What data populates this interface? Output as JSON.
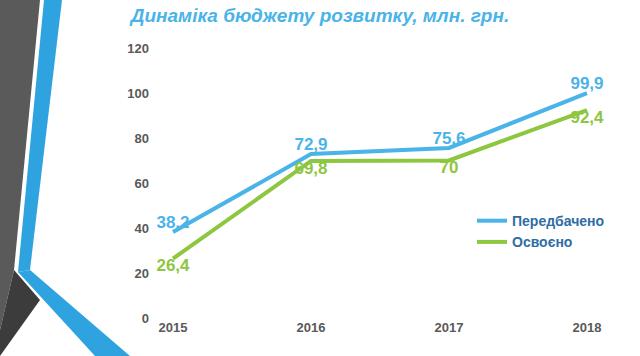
{
  "chart_data": {
    "type": "line",
    "title": "Динаміка бюджету розвитку, млн. грн.",
    "categories": [
      "2015",
      "2016",
      "2017",
      "2018"
    ],
    "series": [
      {
        "name": "Передбачено",
        "color": "#4ab3e8",
        "values": [
          38.2,
          72.9,
          75.6,
          99.9
        ],
        "value_labels": [
          "38,2",
          "72,9",
          "75,6",
          "99,9"
        ]
      },
      {
        "name": "Освоєно",
        "color": "#8dc63f",
        "values": [
          26.4,
          69.8,
          70,
          92.4
        ],
        "value_labels": [
          "26,4",
          "69,8",
          "70",
          "92,4"
        ]
      }
    ],
    "ylim": [
      0,
      120
    ],
    "yticks": [
      0,
      20,
      40,
      60,
      80,
      100,
      120
    ],
    "grid": false,
    "legend": "right",
    "data_labels": true
  }
}
